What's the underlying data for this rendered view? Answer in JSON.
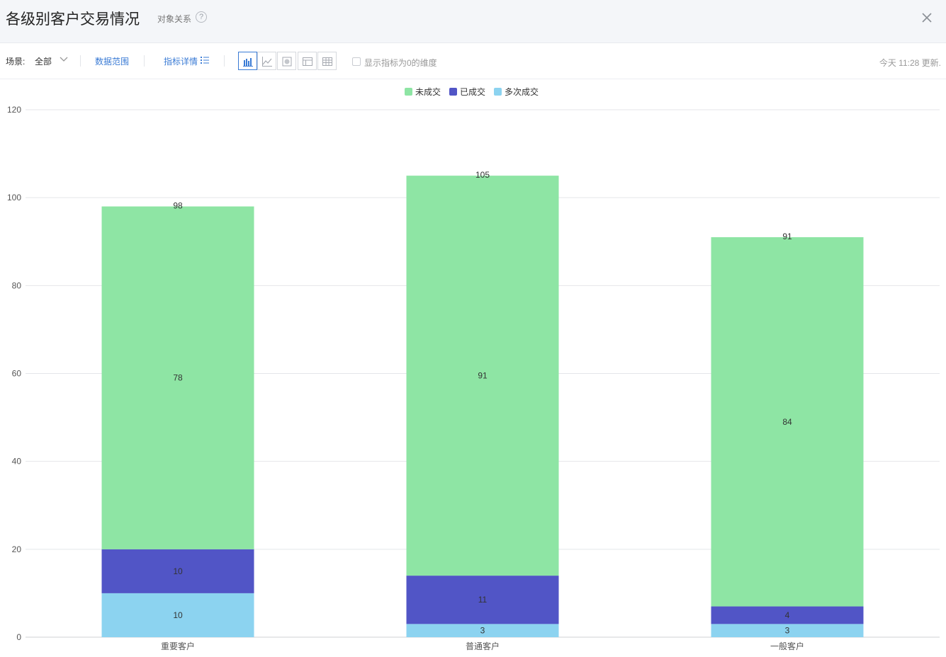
{
  "header": {
    "title": "各级别客户交易情况",
    "subtitle": "对象关系",
    "help_icon": "help-circle-icon",
    "close_icon": "close-icon"
  },
  "toolbar": {
    "scene_label": "场景:",
    "scene_value": "全部",
    "data_range_label": "数据范围",
    "metric_detail_label": "指标详情",
    "view_buttons": [
      "bar-chart-icon",
      "line-chart-icon",
      "pie-chart-icon",
      "table-icon",
      "grid-table-icon"
    ],
    "active_view": "bar-chart-icon",
    "show_zero_label": "显示指标为0的维度",
    "show_zero_checked": false,
    "updated_text": "今天 11:28 更新."
  },
  "colors": {
    "accent": "#3a7bd5",
    "未成交": "#8ee5a4",
    "已成交": "#5155c6",
    "多次成交": "#8cd3f0"
  },
  "chart_data": {
    "type": "bar",
    "stacked": true,
    "categories": [
      "重要客户",
      "普通客户",
      "一般客户"
    ],
    "series": [
      {
        "name": "多次成交",
        "values": [
          10,
          3,
          3
        ]
      },
      {
        "name": "已成交",
        "values": [
          10,
          11,
          4
        ]
      },
      {
        "name": "未成交",
        "values": [
          78,
          91,
          84
        ]
      }
    ],
    "totals": [
      98,
      105,
      91
    ],
    "legend_order": [
      "未成交",
      "已成交",
      "多次成交"
    ],
    "ylim": [
      0,
      120
    ],
    "yticks": [
      0,
      20,
      40,
      60,
      80,
      100,
      120
    ],
    "grid": true,
    "legend_position": "top-center"
  }
}
